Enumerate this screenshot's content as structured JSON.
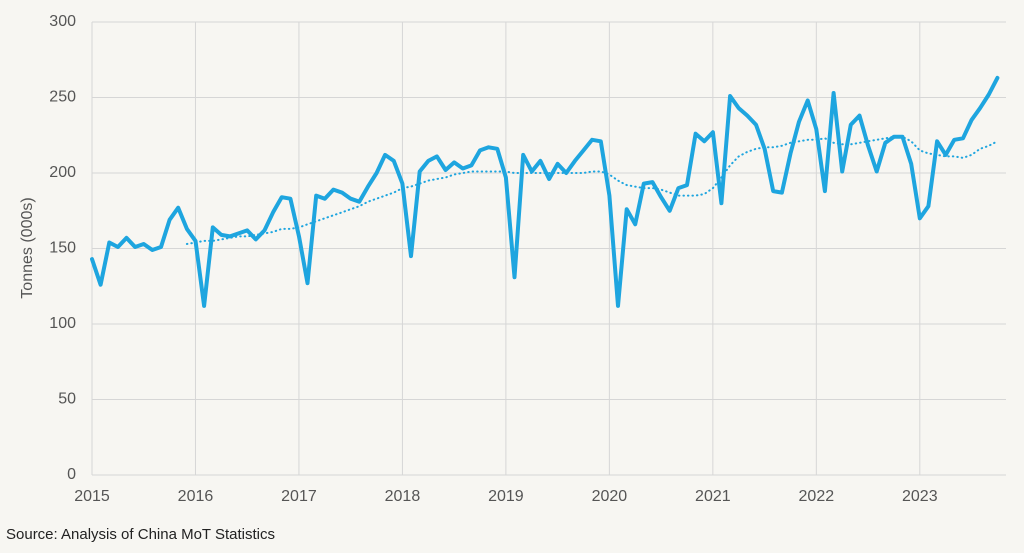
{
  "chart_data": {
    "type": "line",
    "ylabel": "Tonnes (000s)",
    "source": "Source: Analysis of China MoT Statistics",
    "x": [
      2015,
      2015.083,
      2015.167,
      2015.25,
      2015.333,
      2015.417,
      2015.5,
      2015.583,
      2015.667,
      2015.75,
      2015.833,
      2015.917,
      2016,
      2016.083,
      2016.167,
      2016.25,
      2016.333,
      2016.417,
      2016.5,
      2016.583,
      2016.667,
      2016.75,
      2016.833,
      2016.917,
      2017,
      2017.083,
      2017.167,
      2017.25,
      2017.333,
      2017.417,
      2017.5,
      2017.583,
      2017.667,
      2017.75,
      2017.833,
      2017.917,
      2018,
      2018.083,
      2018.167,
      2018.25,
      2018.333,
      2018.417,
      2018.5,
      2018.583,
      2018.667,
      2018.75,
      2018.833,
      2018.917,
      2019,
      2019.083,
      2019.167,
      2019.25,
      2019.333,
      2019.417,
      2019.5,
      2019.583,
      2019.667,
      2019.75,
      2019.833,
      2019.917,
      2020,
      2020.083,
      2020.167,
      2020.25,
      2020.333,
      2020.417,
      2020.5,
      2020.583,
      2020.667,
      2020.75,
      2020.833,
      2020.917,
      2021,
      2021.083,
      2021.167,
      2021.25,
      2021.333,
      2021.417,
      2021.5,
      2021.583,
      2021.667,
      2021.75,
      2021.833,
      2021.917,
      2022,
      2022.083,
      2022.167,
      2022.25,
      2022.333,
      2022.417,
      2022.5,
      2022.583,
      2022.667,
      2022.75,
      2022.833,
      2022.917,
      2023,
      2023.083,
      2023.167,
      2023.25,
      2023.333,
      2023.417,
      2023.5,
      2023.583,
      2023.667,
      2023.75
    ],
    "series": [
      {
        "color": "#1ea5df",
        "style": "solid",
        "values": [
          143,
          126,
          154,
          151,
          157,
          151,
          153,
          149,
          151,
          169,
          177,
          163,
          155,
          112,
          164,
          159,
          158,
          160,
          162,
          156,
          162,
          174,
          184,
          183,
          158,
          127,
          185,
          183,
          189,
          187,
          183,
          181,
          191,
          200,
          212,
          208,
          193,
          145,
          201,
          208,
          211,
          202,
          207,
          203,
          205,
          215,
          217,
          216,
          197,
          131,
          212,
          201,
          208,
          196,
          206,
          200,
          208,
          215,
          222,
          221,
          185,
          112,
          176,
          166,
          193,
          194,
          184,
          175,
          190,
          192,
          226,
          221,
          227,
          180,
          251,
          243,
          238,
          232,
          216,
          188,
          187,
          213,
          234,
          248,
          229,
          188,
          253,
          201,
          232,
          238,
          218,
          201,
          220,
          224,
          224,
          206,
          170,
          178,
          221,
          212,
          222,
          223,
          235,
          243,
          252,
          263
        ]
      },
      {
        "color": "#1ea5df",
        "style": "dotted",
        "values": [
          null,
          null,
          null,
          null,
          null,
          null,
          null,
          null,
          null,
          null,
          null,
          153,
          154,
          155,
          155,
          156,
          157,
          158,
          158,
          159,
          160,
          161,
          163,
          163,
          164,
          166,
          168,
          170,
          172,
          174,
          176,
          178,
          181,
          183,
          185,
          187,
          190,
          191,
          193,
          195,
          196,
          197,
          199,
          200,
          201,
          201,
          201,
          201,
          201,
          200,
          200,
          200,
          200,
          200,
          200,
          200,
          200,
          200,
          201,
          201,
          199,
          195,
          192,
          191,
          190,
          190,
          189,
          187,
          185,
          185,
          185,
          186,
          190,
          197,
          205,
          211,
          214,
          216,
          217,
          217,
          218,
          220,
          221,
          222,
          222,
          223,
          220,
          219,
          219,
          220,
          221,
          222,
          223,
          224,
          224,
          221,
          215,
          213,
          212,
          211,
          211,
          210,
          212,
          216,
          218,
          221
        ]
      }
    ],
    "xlim": [
      2015,
      2023.833
    ],
    "xticks": [
      2015,
      2016,
      2017,
      2018,
      2019,
      2020,
      2021,
      2022,
      2023
    ],
    "ylim": [
      0,
      300
    ],
    "yticks": [
      0,
      50,
      100,
      150,
      200,
      250,
      300
    ],
    "grid": true
  }
}
